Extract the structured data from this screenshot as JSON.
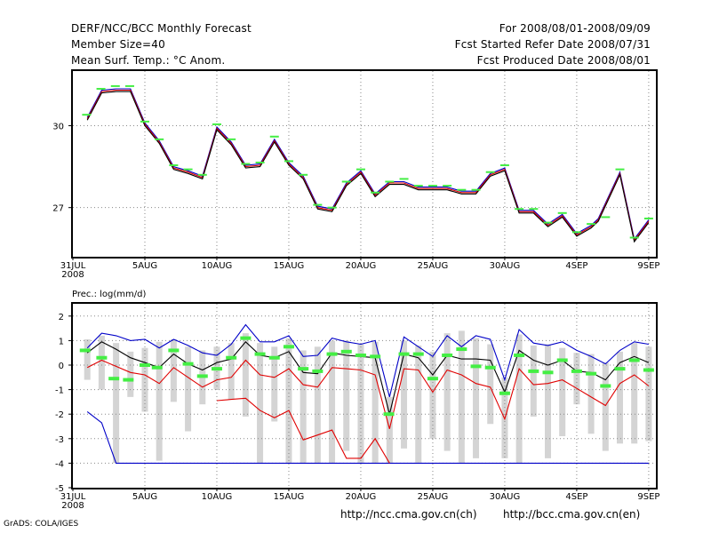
{
  "header": {
    "title": "DERF/NCC/BCC Monthly Forecast",
    "member_size": "Member Size=40",
    "variable": "Mean Surf. Temp.: °C Anom.",
    "period": "For 2008/08/01-2008/09/09",
    "start_ref": "Fcst Started Refer Date 2008/07/31",
    "produced": "Fcst Produced Date 2008/08/01"
  },
  "footer": {
    "grads": "GrADS: COLA/IGES",
    "link_ncc": "http://ncc.cma.gov.cn(ch)",
    "link_bcc": "http://bcc.cma.gov.cn(en)"
  },
  "colors": {
    "ensemble_line": "#0000c8",
    "bias_line": "#e00000",
    "mean_line": "#000000",
    "marker": "#44ee44",
    "box": "#d4d4d4",
    "grid": "#888888"
  },
  "chart_data": [
    {
      "type": "line",
      "title": "Mean Surf. Temp.: °C Anom.",
      "xlabel": "",
      "ylabel": "",
      "x_ticks": [
        "31JUL",
        "5AUG",
        "10AUG",
        "15AUG",
        "20AUG",
        "25AUG",
        "30AUG",
        "4SEP",
        "9SEP"
      ],
      "x_tick_days": [
        0,
        5,
        10,
        15,
        20,
        25,
        30,
        35,
        40
      ],
      "x_year_label": "2008",
      "y_ticks": [
        27,
        30
      ],
      "ylim": [
        25.2,
        32.0
      ],
      "xlim": [
        0,
        40.5
      ],
      "grid": true,
      "days": [
        1,
        2,
        3,
        4,
        5,
        6,
        7,
        8,
        9,
        10,
        11,
        12,
        13,
        14,
        15,
        16,
        17,
        18,
        19,
        20,
        21,
        22,
        23,
        24,
        25,
        26,
        27,
        28,
        29,
        30,
        31,
        32,
        33,
        34,
        35,
        36,
        36.5,
        38,
        39,
        40
      ],
      "series": [
        {
          "name": "ensemble",
          "values": [
            30.3,
            31.3,
            31.35,
            31.35,
            30.1,
            29.45,
            28.5,
            28.35,
            28.15,
            29.95,
            29.4,
            28.55,
            28.6,
            29.5,
            28.65,
            28.15,
            27.05,
            26.95,
            27.9,
            28.35,
            27.5,
            27.95,
            27.95,
            27.75,
            27.75,
            27.75,
            27.6,
            27.6,
            28.25,
            28.45,
            26.9,
            26.9,
            26.4,
            26.75,
            26.05,
            26.35,
            26.6,
            28.3,
            25.85,
            26.55
          ]
        },
        {
          "name": "bias",
          "values": [
            30.25,
            31.25,
            31.3,
            31.3,
            30.05,
            29.4,
            28.45,
            28.3,
            28.1,
            29.9,
            29.35,
            28.5,
            28.55,
            29.45,
            28.6,
            28.1,
            27.0,
            26.9,
            27.85,
            28.3,
            27.45,
            27.9,
            27.9,
            27.7,
            27.7,
            27.7,
            27.55,
            27.55,
            28.2,
            28.4,
            26.85,
            26.85,
            26.35,
            26.7,
            26.0,
            26.3,
            26.55,
            28.25,
            25.8,
            26.5
          ]
        },
        {
          "name": "mean",
          "values": [
            30.2,
            31.2,
            31.25,
            31.25,
            30.0,
            29.35,
            28.4,
            28.25,
            28.05,
            29.85,
            29.3,
            28.45,
            28.5,
            29.4,
            28.55,
            28.05,
            26.95,
            26.85,
            27.8,
            28.25,
            27.4,
            27.85,
            27.85,
            27.65,
            27.65,
            27.65,
            27.5,
            27.5,
            28.15,
            28.35,
            26.8,
            26.8,
            26.3,
            26.65,
            25.95,
            26.25,
            26.5,
            28.2,
            25.75,
            26.45
          ]
        }
      ],
      "markers": [
        {
          "day": 0.95,
          "value": 30.4
        },
        {
          "day": 1.95,
          "value": 31.35
        },
        {
          "day": 2.95,
          "value": 31.45
        },
        {
          "day": 3.95,
          "value": 31.45
        },
        {
          "day": 5.0,
          "value": 30.15
        },
        {
          "day": 6.0,
          "value": 29.5
        },
        {
          "day": 7.0,
          "value": 28.55
        },
        {
          "day": 8.0,
          "value": 28.4
        },
        {
          "day": 9.0,
          "value": 28.2
        },
        {
          "day": 10.0,
          "value": 30.05
        },
        {
          "day": 11.0,
          "value": 29.5
        },
        {
          "day": 12.0,
          "value": 28.6
        },
        {
          "day": 13.0,
          "value": 28.65
        },
        {
          "day": 14.0,
          "value": 29.6
        },
        {
          "day": 15.0,
          "value": 28.7
        },
        {
          "day": 16.0,
          "value": 28.2
        },
        {
          "day": 17.0,
          "value": 27.1
        },
        {
          "day": 18.0,
          "value": 27.0
        },
        {
          "day": 19.0,
          "value": 27.95
        },
        {
          "day": 20.0,
          "value": 28.4
        },
        {
          "day": 21.0,
          "value": 27.55
        },
        {
          "day": 22.0,
          "value": 27.95
        },
        {
          "day": 23.0,
          "value": 28.05
        },
        {
          "day": 24.0,
          "value": 27.8
        },
        {
          "day": 25.0,
          "value": 27.8
        },
        {
          "day": 26.0,
          "value": 27.8
        },
        {
          "day": 27.0,
          "value": 27.65
        },
        {
          "day": 28.0,
          "value": 27.65
        },
        {
          "day": 29.0,
          "value": 28.3
        },
        {
          "day": 30.0,
          "value": 28.55
        },
        {
          "day": 31.0,
          "value": 26.95
        },
        {
          "day": 32.0,
          "value": 26.95
        },
        {
          "day": 33.0,
          "value": 26.45
        },
        {
          "day": 34.0,
          "value": 26.8
        },
        {
          "day": 35.0,
          "value": 26.1
        },
        {
          "day": 36.0,
          "value": 26.4
        },
        {
          "day": 37.0,
          "value": 26.65
        },
        {
          "day": 38.0,
          "value": 28.4
        },
        {
          "day": 39.0,
          "value": 25.9
        },
        {
          "day": 40.0,
          "value": 26.6
        }
      ]
    },
    {
      "type": "line",
      "title": "Prec.: log(mm/d)",
      "xlabel": "",
      "ylabel": "",
      "x_ticks": [
        "31JUL",
        "5AUG",
        "10AUG",
        "15AUG",
        "20AUG",
        "25AUG",
        "30AUG",
        "4SEP",
        "9SEP"
      ],
      "x_tick_days": [
        0,
        5,
        10,
        15,
        20,
        25,
        30,
        35,
        40
      ],
      "x_year_label": "2008",
      "y_ticks": [
        -5,
        -4,
        -3,
        -2,
        -1,
        0,
        1,
        2
      ],
      "ylim": [
        -5,
        2.5
      ],
      "xlim": [
        0,
        40.5
      ],
      "grid": true,
      "days": [
        1,
        2,
        3,
        4,
        5,
        6,
        7,
        8,
        9,
        10,
        11,
        12,
        13,
        14,
        15,
        16,
        17,
        18,
        19,
        20,
        21,
        22,
        23,
        24,
        25,
        26,
        27,
        28,
        29,
        30,
        31,
        32,
        33,
        34,
        35,
        36,
        37,
        38,
        39,
        40
      ],
      "series": [
        {
          "name": "upper",
          "values": [
            0.7,
            1.3,
            1.2,
            1.0,
            1.05,
            0.7,
            1.05,
            0.8,
            0.5,
            0.4,
            0.85,
            1.65,
            0.95,
            0.95,
            1.2,
            0.35,
            0.4,
            1.1,
            0.95,
            0.85,
            1.0,
            -1.3,
            1.15,
            0.75,
            0.35,
            1.2,
            0.75,
            1.2,
            1.05,
            -0.6,
            1.45,
            0.9,
            0.8,
            0.95,
            0.6,
            0.35,
            0.05,
            0.6,
            0.95,
            0.85
          ]
        },
        {
          "name": "mean",
          "values": [
            0.5,
            0.95,
            0.65,
            0.3,
            0.1,
            -0.1,
            0.45,
            0.05,
            -0.2,
            0.1,
            0.25,
            0.95,
            0.4,
            0.3,
            0.55,
            -0.3,
            -0.35,
            0.5,
            0.4,
            0.35,
            0.3,
            -2.0,
            0.45,
            0.3,
            -0.4,
            0.4,
            0.25,
            0.25,
            0.2,
            -1.1,
            0.6,
            0.2,
            0.0,
            0.2,
            -0.25,
            -0.3,
            -0.6,
            0.1,
            0.35,
            0.1
          ]
        },
        {
          "name": "lower",
          "values": [
            -0.1,
            0.2,
            -0.05,
            -0.3,
            -0.4,
            -0.75,
            -0.1,
            -0.5,
            -0.9,
            -0.6,
            -0.5,
            0.2,
            -0.4,
            -0.5,
            -0.15,
            -0.8,
            -0.9,
            -0.1,
            -0.15,
            -0.2,
            -0.4,
            -2.6,
            -0.15,
            -0.2,
            -1.1,
            -0.2,
            -0.4,
            -0.75,
            -0.9,
            -2.2,
            -0.15,
            -0.8,
            -0.75,
            -0.6,
            -0.95,
            -1.3,
            -1.65,
            -0.75,
            -0.4,
            -0.85
          ]
        },
        {
          "name": "bottom",
          "values": [
            -1.9,
            -2.35,
            -4,
            -4,
            -4,
            -4,
            -4,
            -4,
            -4,
            -4,
            -4,
            -4,
            -4,
            -4,
            -4,
            -4,
            -4,
            -4,
            -4,
            -4,
            -4,
            -4,
            -4,
            -4,
            -4,
            -4,
            -4,
            -4,
            -4,
            -4,
            -4,
            -4,
            -4,
            -4,
            -4,
            -4,
            -4,
            -4,
            -4,
            -4
          ]
        },
        {
          "name": "low_red",
          "values": [
            null,
            null,
            null,
            null,
            null,
            null,
            null,
            null,
            null,
            -1.45,
            -1.4,
            -1.35,
            -1.85,
            -2.15,
            -1.85,
            -3.05,
            -2.85,
            -2.65,
            -3.8,
            -3.8,
            -3.0,
            -4.0,
            null,
            null,
            null,
            null,
            null,
            null,
            null,
            null,
            null,
            null,
            null,
            null,
            null,
            null,
            null,
            null,
            null,
            null
          ]
        }
      ],
      "boxes_top": [
        1.05,
        1.2,
        0.9,
        0.55,
        0.7,
        0.95,
        1.05,
        0.75,
        0.6,
        0.75,
        0.9,
        1.3,
        0.9,
        0.75,
        1.1,
        0.6,
        0.75,
        1.0,
        1.0,
        0.85,
        0.95,
        -1.3,
        1.0,
        0.8,
        0.55,
        1.3,
        1.4,
        1.1,
        0.85,
        -0.5,
        1.25,
        0.8,
        0.85,
        0.7,
        0.5,
        0.45,
        0.1,
        0.55,
        0.9,
        0.75
      ],
      "boxes_bottom": [
        -0.6,
        -1.0,
        -4.0,
        -1.3,
        -1.9,
        -3.9,
        -1.5,
        -2.7,
        -1.6,
        -1.0,
        -1.4,
        -2.1,
        -4.0,
        -2.3,
        -4.0,
        -4.0,
        -4.0,
        -4.0,
        -3.5,
        -4.0,
        -4.0,
        -4.0,
        -3.4,
        -4.0,
        -3.0,
        -3.5,
        -4.0,
        -3.8,
        -2.4,
        -3.8,
        -4.0,
        -2.1,
        -3.8,
        -2.9,
        -1.6,
        -2.8,
        -3.5,
        -3.2,
        -3.2,
        -3.1
      ],
      "markers": [
        {
          "day": 0.85,
          "value": 0.6
        },
        {
          "day": 2.0,
          "value": 0.3
        },
        {
          "day": 2.85,
          "value": -0.55
        },
        {
          "day": 3.85,
          "value": -0.6
        },
        {
          "day": 5.0,
          "value": 0.0
        },
        {
          "day": 5.85,
          "value": -0.1
        },
        {
          "day": 7.0,
          "value": 0.6
        },
        {
          "day": 8.0,
          "value": 0.05
        },
        {
          "day": 9.0,
          "value": -0.45
        },
        {
          "day": 10.0,
          "value": -0.15
        },
        {
          "day": 11.0,
          "value": 0.3
        },
        {
          "day": 12.0,
          "value": 1.1
        },
        {
          "day": 13.0,
          "value": 0.45
        },
        {
          "day": 14.0,
          "value": 0.3
        },
        {
          "day": 15.0,
          "value": 0.75
        },
        {
          "day": 16.0,
          "value": -0.15
        },
        {
          "day": 17.0,
          "value": -0.25
        },
        {
          "day": 18.0,
          "value": 0.45
        },
        {
          "day": 19.0,
          "value": 0.55
        },
        {
          "day": 20.0,
          "value": 0.4
        },
        {
          "day": 21.0,
          "value": 0.35
        },
        {
          "day": 21.95,
          "value": -2.0
        },
        {
          "day": 23.0,
          "value": 0.45
        },
        {
          "day": 24.0,
          "value": 0.45
        },
        {
          "day": 25.0,
          "value": -0.55
        },
        {
          "day": 26.0,
          "value": 0.4
        },
        {
          "day": 27.0,
          "value": 0.65
        },
        {
          "day": 28.0,
          "value": -0.05
        },
        {
          "day": 29.0,
          "value": -0.1
        },
        {
          "day": 30.0,
          "value": -1.15
        },
        {
          "day": 31.0,
          "value": 0.4
        },
        {
          "day": 32.0,
          "value": -0.25
        },
        {
          "day": 33.0,
          "value": -0.3
        },
        {
          "day": 34.0,
          "value": 0.2
        },
        {
          "day": 35.0,
          "value": -0.25
        },
        {
          "day": 36.0,
          "value": -0.35
        },
        {
          "day": 37.0,
          "value": -0.85
        },
        {
          "day": 38.0,
          "value": -0.15
        },
        {
          "day": 39.0,
          "value": 0.2
        },
        {
          "day": 40.0,
          "value": -0.2
        }
      ]
    }
  ]
}
